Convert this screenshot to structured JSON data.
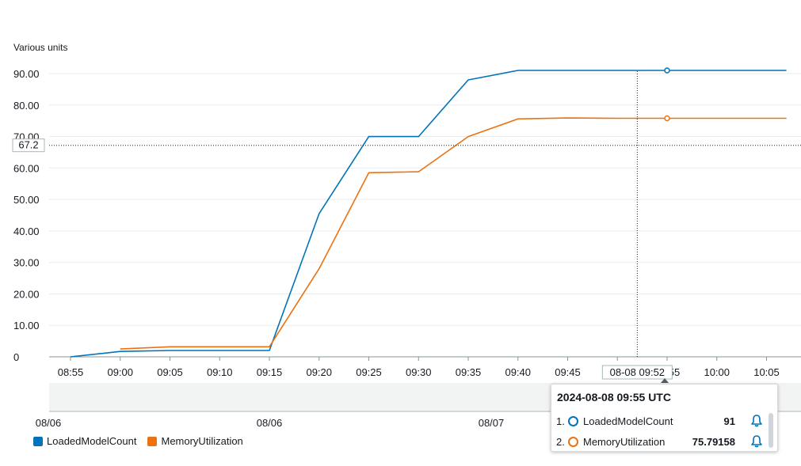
{
  "chart_data": {
    "type": "line",
    "ylabel": "Various units",
    "ylim": [
      0,
      90
    ],
    "yticks": [
      "90.00",
      "80.00",
      "70.00",
      "60.00",
      "50.00",
      "40.00",
      "30.00",
      "20.00",
      "10.00",
      "0"
    ],
    "xticks": [
      "08:55",
      "09:00",
      "09:05",
      "09:10",
      "09:15",
      "09:20",
      "09:25",
      "09:30",
      "09:35",
      "09:40",
      "09:45",
      "09:50",
      "09:55",
      "10:00",
      "10:05"
    ],
    "series": [
      {
        "name": "LoadedModelCount",
        "color": "#0073bb",
        "points": [
          [
            "08:55",
            0
          ],
          [
            "09:00",
            1.7
          ],
          [
            "09:05",
            2
          ],
          [
            "09:10",
            2
          ],
          [
            "09:15",
            2
          ],
          [
            "09:20",
            45.5
          ],
          [
            "09:25",
            70
          ],
          [
            "09:30",
            70
          ],
          [
            "09:35",
            88
          ],
          [
            "09:40",
            91
          ],
          [
            "09:45",
            91
          ],
          [
            "09:50",
            91
          ],
          [
            "09:55",
            91
          ],
          [
            "10:00",
            91
          ],
          [
            "10:05",
            91
          ],
          [
            "10:07",
            91
          ]
        ]
      },
      {
        "name": "MemoryUtilization",
        "color": "#ec7211",
        "points": [
          [
            "09:00",
            2.5
          ],
          [
            "09:05",
            3.2
          ],
          [
            "09:10",
            3.2
          ],
          [
            "09:15",
            3.2
          ],
          [
            "09:20",
            28
          ],
          [
            "09:25",
            58.5
          ],
          [
            "09:30",
            58.8
          ],
          [
            "09:35",
            70
          ],
          [
            "09:40",
            75.6
          ],
          [
            "09:45",
            75.9
          ],
          [
            "09:50",
            75.8
          ],
          [
            "09:55",
            75.79158
          ],
          [
            "10:00",
            75.8
          ],
          [
            "10:05",
            75.8
          ],
          [
            "10:07",
            75.8
          ]
        ]
      }
    ],
    "crosshair": {
      "y_value": "67.2",
      "x_label": "08-08 09:52"
    },
    "navigator_labels": [
      "08/06",
      "08/06",
      "08/07"
    ]
  },
  "legend": {
    "items": [
      {
        "label": "LoadedModelCount",
        "color": "#0073bb"
      },
      {
        "label": "MemoryUtilization",
        "color": "#ec7211"
      }
    ]
  },
  "tooltip": {
    "title": "2024-08-08 09:55 UTC",
    "rows": [
      {
        "index": "1.",
        "name": "LoadedModelCount",
        "value": "91",
        "color": "#0073bb",
        "icon": "bell-icon"
      },
      {
        "index": "2.",
        "name": "MemoryUtilization",
        "value": "75.79158",
        "color": "#ec7211",
        "icon": "bell-icon"
      }
    ]
  }
}
